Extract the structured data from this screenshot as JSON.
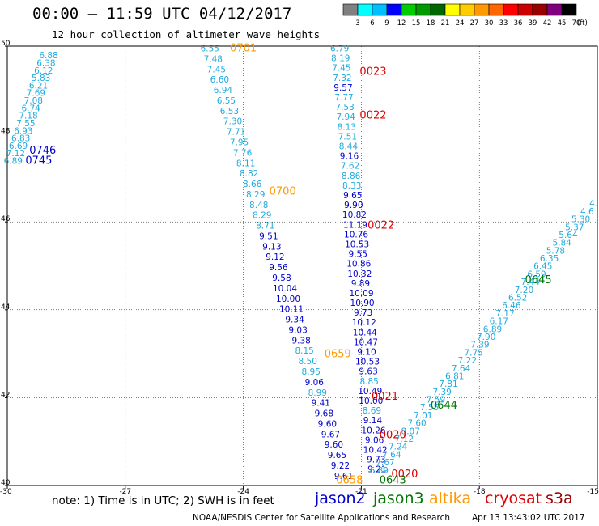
{
  "header": {
    "title": "00:00 — 11:59 UTC 04/12/2017",
    "subtitle": "12 hour collection of altimeter wave heights"
  },
  "colorbar": {
    "labels": [
      "3",
      "6",
      "9",
      "12",
      "15",
      "18",
      "21",
      "24",
      "27",
      "30",
      "33",
      "36",
      "39",
      "42",
      "45",
      "70"
    ],
    "unit": "(ft)",
    "colors": [
      "#808080",
      "#00ffff",
      "#00bfff",
      "#0000ff",
      "#00cc00",
      "#009900",
      "#006600",
      "#ffff00",
      "#ffcc00",
      "#ff9900",
      "#ff6600",
      "#ff0000",
      "#cc0000",
      "#990000",
      "#800080",
      "#000000"
    ]
  },
  "footer": {
    "note": "note: 1) Time is in UTC; 2) SWH is in feet",
    "satellites": [
      {
        "name": "jason2",
        "color": "#0000cc"
      },
      {
        "name": "jason3",
        "color": "#007700"
      },
      {
        "name": "altika",
        "color": "#ff9900"
      },
      {
        "name": "cryosat",
        "color": "#dd0000"
      },
      {
        "name": "s3a",
        "color": "#990000"
      }
    ],
    "credit": "NOAA/NESDIS Center for Satellite Applications and Research",
    "timestamp": "Apr 13 13:43:02 UTC 2017"
  },
  "chart_data": {
    "type": "scatter",
    "xlim": [
      -30,
      -15
    ],
    "ylim": [
      40,
      50
    ],
    "x_ticks": [
      "-30",
      "-27",
      "-24",
      "-21",
      "-18",
      "-15"
    ],
    "y_ticks": [
      "40",
      "42",
      "44",
      "46",
      "48",
      "50"
    ],
    "grid": true,
    "legend_position": "bottom",
    "color_scale": {
      "light": "#22aadd",
      "mid": "#0000cc"
    },
    "passes": [
      {
        "label": "0746",
        "color": "#0000cc",
        "x": -29.1,
        "y": 47.55
      },
      {
        "label": "0745",
        "color": "#0000cc",
        "x": -29.2,
        "y": 47.32
      },
      {
        "label": "0701",
        "color": "#ff9900",
        "x": -24.0,
        "y": 49.88
      },
      {
        "label": "0700",
        "color": "#ff9900",
        "x": -23.0,
        "y": 46.62
      },
      {
        "label": "0659",
        "color": "#ff9900",
        "x": -21.6,
        "y": 42.92
      },
      {
        "label": "0658",
        "color": "#ff9900",
        "x": -21.3,
        "y": 40.05
      },
      {
        "label": "0023",
        "color": "#dd0000",
        "x": -20.7,
        "y": 49.35
      },
      {
        "label": "0022",
        "color": "#dd0000",
        "x": -20.7,
        "y": 48.35
      },
      {
        "label": "0022",
        "color": "#dd0000",
        "x": -20.5,
        "y": 45.85
      },
      {
        "label": "0021",
        "color": "#dd0000",
        "x": -20.4,
        "y": 41.95
      },
      {
        "label": "0020",
        "color": "#dd0000",
        "x": -20.2,
        "y": 41.08
      },
      {
        "label": "0020",
        "color": "#dd0000",
        "x": -19.9,
        "y": 40.18
      },
      {
        "label": "0645",
        "color": "#007700",
        "x": -16.5,
        "y": 44.6
      },
      {
        "label": "0644",
        "color": "#007700",
        "x": -18.9,
        "y": 41.75
      },
      {
        "label": "0643",
        "color": "#007700",
        "x": -20.2,
        "y": 40.05
      }
    ],
    "tracks": [
      {
        "x0": -28.95,
        "y0": 49.72,
        "x1": -29.85,
        "y1": 47.32,
        "values": [
          "6.88",
          "6.38",
          "6.12",
          "5.83",
          "6.21",
          "7.69",
          "7.08",
          "6.74",
          "7.18",
          "7.55",
          "6.93",
          "6.83",
          "6.69",
          "7.12",
          "6.89"
        ]
      },
      {
        "x0": -24.85,
        "y0": 49.88,
        "x1": -21.45,
        "y1": 40.15,
        "values": [
          "6.55",
          "7.48",
          "7.45",
          "6.60",
          "6.94",
          "6.55",
          "6.53",
          "7.30",
          "7.71",
          "7.95",
          "7.76",
          "8.11",
          "8.82",
          "8.66",
          "8.29",
          "8.48",
          "8.29",
          "8.71",
          "9.51",
          "9.13",
          "9.12",
          "9.56",
          "9.58",
          "10.04",
          "10.00",
          "10.11",
          "9.34",
          "9.03",
          "9.38",
          "8.15",
          "8.50",
          "8.95",
          "9.06",
          "8.99",
          "9.41",
          "9.68",
          "9.60",
          "9.67",
          "9.60",
          "9.65",
          "9.22",
          "9.61"
        ]
      },
      {
        "x0": -21.55,
        "y0": 49.88,
        "x1": -20.6,
        "y1": 40.3,
        "values": [
          "6.79",
          "8.19",
          "7.45",
          "7.32",
          "9.57",
          "7.77",
          "7.53",
          "7.94",
          "8.13",
          "7.51",
          "8.44",
          "9.16",
          "7.62",
          "8.86",
          "8.33",
          "9.65",
          "9.90",
          "10.82",
          "11.19",
          "10.76",
          "10.53",
          "9.55",
          "10.86",
          "10.32",
          "9.89",
          "10.09",
          "10.90",
          "9.73",
          "10.12",
          "10.44",
          "10.47",
          "9.10",
          "10.53",
          "9.63",
          "8.85",
          "10.49",
          "10.00",
          "8.69",
          "9.14",
          "10.26",
          "9.06",
          "10.42",
          "9.73",
          "9.21"
        ]
      },
      {
        "x0": -15.1,
        "y0": 46.35,
        "x1": -20.55,
        "y1": 40.28,
        "values": [
          "4.",
          "4.6",
          "5.30",
          "5.37",
          "5.64",
          "5.84",
          "5.78",
          "6.35",
          "6.45",
          "6.59",
          "7.44",
          "7.20",
          "6.52",
          "6.46",
          "7.17",
          "6.17",
          "6.89",
          "7.90",
          "7.39",
          "7.75",
          "7.22",
          "7.64",
          "6.81",
          "7.81",
          "7.39",
          "7.59",
          "7.55",
          "7.01",
          "7.60",
          "8.07",
          "7.12",
          "7.24",
          "7.64",
          "7.67",
          "6.89"
        ]
      }
    ]
  }
}
